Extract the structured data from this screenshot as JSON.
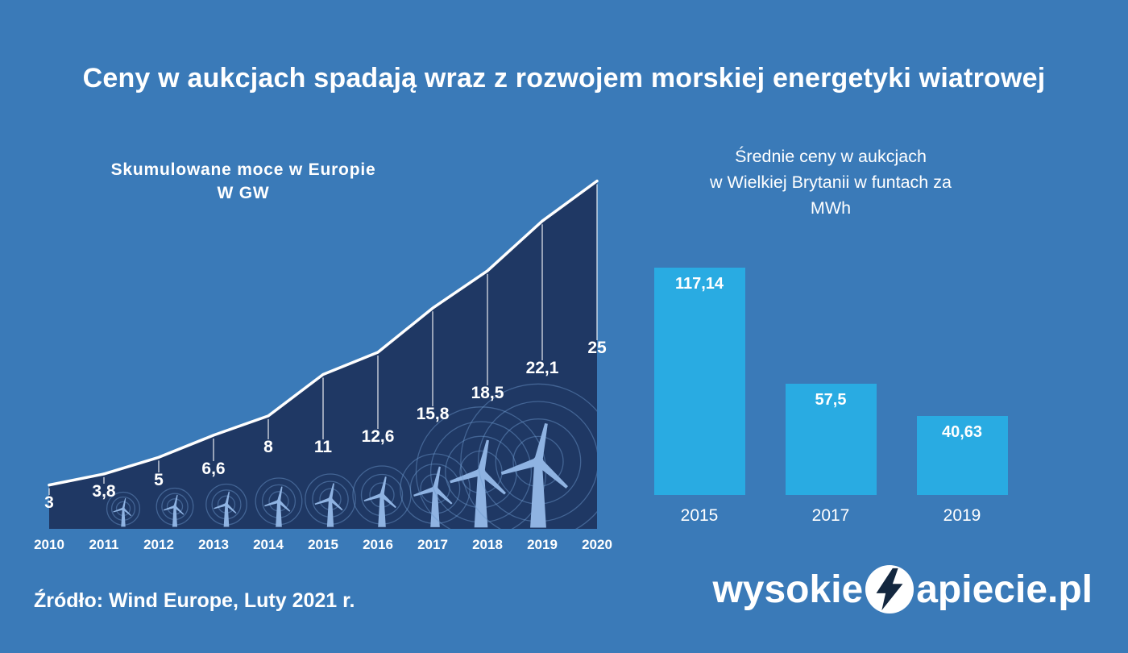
{
  "title": "Ceny w aukcjach spadają wraz z rozwojem morskiej energetyki wiatrowej",
  "source_note": "Źródło: Wind Europe, Luty 2021 r.",
  "logo": {
    "prefix": "wysokie",
    "suffix": "apiecie.pl",
    "icon": "lightning-bolt-icon"
  },
  "colors": {
    "background": "#3a7ab8",
    "area_fill": "#1f3864",
    "bar_fill": "#29abe2",
    "line": "#ffffff",
    "turbine": "#8fb3e2",
    "text": "#ffffff"
  },
  "chart_data": [
    {
      "type": "area",
      "title": "Skumulowane moce w Europie",
      "subtitle": "W GW",
      "categories": [
        "2010",
        "2011",
        "2012",
        "2013",
        "2014",
        "2015",
        "2016",
        "2017",
        "2018",
        "2019",
        "2020"
      ],
      "values": [
        3,
        3.8,
        5,
        6.6,
        8,
        11,
        12.6,
        15.8,
        18.5,
        22.1,
        25
      ],
      "labels": [
        "3",
        "3,8",
        "5",
        "6,6",
        "8",
        "11",
        "12,6",
        "15,8",
        "18,5",
        "22,1",
        "25"
      ],
      "ylabel": "GW",
      "ylim": [
        0,
        26
      ],
      "grid": false,
      "legend": "none",
      "decoration": "wind-turbine icons growing with capacity"
    },
    {
      "type": "bar",
      "title": "Średnie ceny w aukcjach w Wielkiej Brytanii w funtach za MWh",
      "title_lines": [
        "Średnie ceny w aukcjach",
        "w Wielkiej Brytanii w funtach za",
        "MWh"
      ],
      "categories": [
        "2015",
        "2017",
        "2019"
      ],
      "values": [
        117.14,
        57.5,
        40.63
      ],
      "labels": [
        "117,14",
        "57,5",
        "40,63"
      ],
      "ylabel": "£/MWh",
      "grid": false,
      "legend": "none"
    }
  ]
}
